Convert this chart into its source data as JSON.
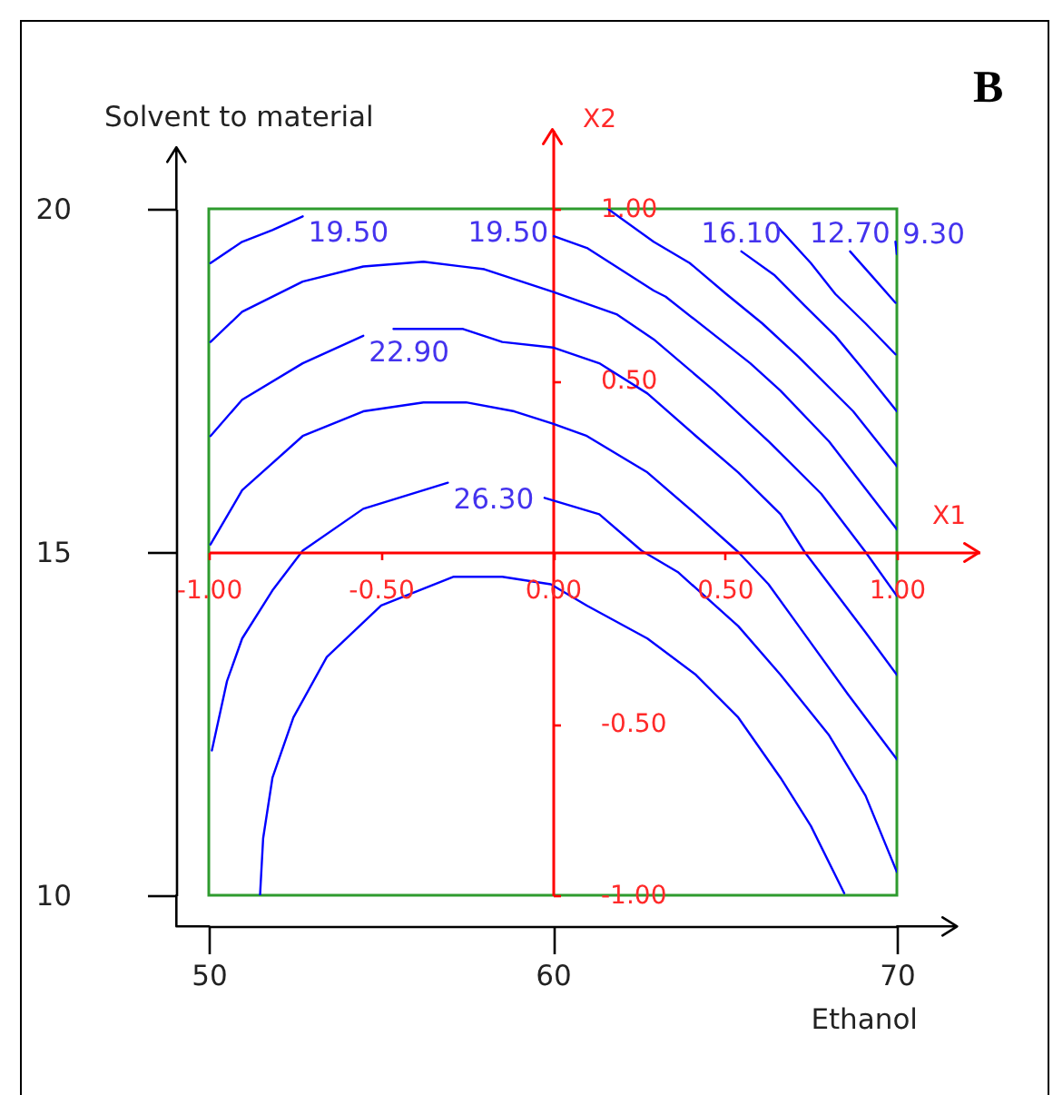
{
  "chart_data": {
    "type": "line",
    "xlabel": "Ethanol",
    "ylabel": "Solvent to material",
    "x2label": "X1",
    "y2label": "X2",
    "xlim": [
      50,
      70
    ],
    "xticks": [
      50,
      60,
      70
    ],
    "ylim": [
      10,
      20
    ],
    "yticks": [
      10,
      15,
      20
    ],
    "x2lim": [
      -1,
      1.24
    ],
    "x2ticks": [
      {
        "value": -1,
        "label": "-1.00"
      },
      {
        "value": -0.5,
        "label": "-0.50"
      },
      {
        "value": 0,
        "label": "0.00"
      },
      {
        "value": 0.5,
        "label": "0.50"
      },
      {
        "value": 1,
        "label": "1.00"
      }
    ],
    "y2lim": [
      -1,
      1.23
    ],
    "y2ticks": [
      {
        "value": -1,
        "label": "-1.00"
      },
      {
        "value": -0.5,
        "label": "-0.50"
      },
      {
        "value": 0.5,
        "label": "0.50"
      },
      {
        "value": 1,
        "label": "1.00"
      }
    ],
    "series": [
      {
        "color": "#0000ff",
        "x": [
          50.05,
          50.97,
          51.85,
          52.73,
          56,
          60.03,
          60.99,
          62.93,
          63.28,
          65.74,
          66.62,
          68.03,
          70
        ],
        "values": [
          19.21,
          19.52,
          19.69,
          19.89,
          null,
          19.6,
          19.43,
          18.81,
          18.72,
          17.75,
          17.35,
          16.61,
          15.33
        ]
      },
      {
        "color": "#0000ff",
        "x": [
          50.05,
          50.97,
          52.73,
          54.49,
          56.24,
          58.01,
          60,
          61.87,
          62.93,
          64.69,
          66.3,
          67.8,
          69.09,
          70
        ],
        "values": [
          18.06,
          18.5,
          18.94,
          19.16,
          19.23,
          19.12,
          18.79,
          18.46,
          18.1,
          17.35,
          16.6,
          15.85,
          15.0,
          14.36
        ]
      },
      {
        "color": "#0000ff",
        "x": [
          50.05,
          50.97,
          52.73,
          54.49,
          55,
          55.37,
          57.39,
          58.53,
          60,
          61.35,
          62.75,
          64.16,
          65.39,
          66.62,
          67.32,
          68.03,
          69.09,
          70
        ],
        "values": [
          16.69,
          17.22,
          17.75,
          18.15,
          null,
          18.25,
          18.25,
          18.06,
          17.98,
          17.75,
          17.31,
          16.69,
          16.16,
          15.55,
          15.0,
          14.53,
          13.83,
          13.21
        ]
      },
      {
        "color": "#0000ff",
        "x": [
          50.05,
          50.97,
          52.73,
          54.49,
          56.24,
          57.48,
          58.88,
          60,
          60.99,
          62.75,
          64.16,
          65.39,
          66.27,
          67.15,
          68.56,
          70
        ],
        "values": [
          15.11,
          15.9,
          16.69,
          17.05,
          17.18,
          17.18,
          17.05,
          16.87,
          16.69,
          16.16,
          15.55,
          15.0,
          14.53,
          13.92,
          12.94,
          11.98
        ]
      },
      {
        "color": "#0000ff",
        "x": [
          50.09,
          50.53,
          50.97,
          51.85,
          52.73,
          54.49,
          56.95,
          58.3,
          59.76,
          61.35,
          62.58,
          63.63,
          65.39,
          66.62,
          68.03,
          69.09,
          70
        ],
        "values": [
          12.11,
          13.12,
          13.74,
          14.44,
          15.02,
          15.63,
          16.01,
          null,
          15.79,
          15.55,
          15.02,
          14.71,
          13.92,
          13.21,
          12.33,
          11.45,
          10.34
        ]
      },
      {
        "color": "#0000ff",
        "x": [
          51.49,
          51.58,
          51.85,
          52.46,
          53.43,
          55.01,
          57.12,
          58.53,
          59.94,
          60.99,
          62.75,
          64.16,
          65.39,
          66.62,
          67.5,
          68.47
        ],
        "values": [
          10,
          10.83,
          11.71,
          12.59,
          13.47,
          14.22,
          14.64,
          14.64,
          14.53,
          14.22,
          13.74,
          13.21,
          12.59,
          11.71,
          11.01,
          10.03
        ]
      },
      {
        "color": "#0000ff",
        "x": [
          61.6,
          62.93,
          63.98,
          65.04,
          66.09,
          67.15,
          68.73,
          70
        ],
        "values": [
          20,
          19.52,
          19.21,
          18.76,
          18.33,
          17.84,
          17.05,
          16.25
        ]
      },
      {
        "color": "#0000ff",
        "x": [
          65.48,
          66.45,
          67.32,
          68.21,
          69.09,
          70
        ],
        "values": [
          19.38,
          19.03,
          18.59,
          18.15,
          17.62,
          17.05
        ]
      },
      {
        "color": "#0000ff",
        "x": [
          66.53,
          67.5,
          68.21,
          69.09,
          69.96
        ],
        "values": [
          19.74,
          19.21,
          18.76,
          18.33,
          17.88
        ]
      },
      {
        "color": "#0000ff",
        "x": [
          68.64,
          69.26,
          69.96
        ],
        "values": [
          19.38,
          19.03,
          18.63
        ]
      },
      {
        "color": "#0000ff",
        "x": [
          69.96,
          70
        ],
        "values": [
          19.52,
          19.34
        ]
      }
    ],
    "annotations": [
      "B",
      {
        "text": "19.50",
        "x": 52.73,
        "y": 19.89
      },
      {
        "text": "19.50",
        "x": 60.03,
        "y": 19.6
      },
      {
        "text": "22.90",
        "x": 54.49,
        "y": 18.15
      },
      {
        "text": "26.30",
        "x": 56.95,
        "y": 16.01
      },
      {
        "text": "16.10",
        "x": 65.48,
        "y": 19.38
      },
      {
        "text": "12.70",
        "x": 68.64,
        "y": 19.38
      },
      "9.30"
    ]
  }
}
